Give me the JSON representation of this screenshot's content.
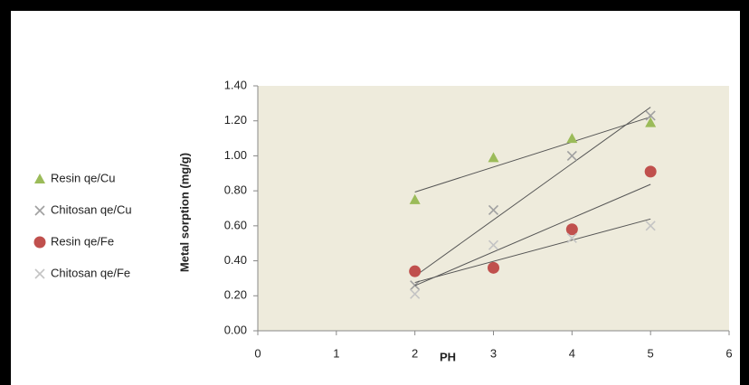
{
  "chart_data": {
    "type": "scatter",
    "trendline": "linear",
    "x_label": "PH",
    "y_label": "Metal sorption (mg/g)",
    "xlim": [
      0,
      6
    ],
    "xticks": [
      0,
      1,
      2,
      3,
      4,
      5,
      6
    ],
    "ylim": [
      0,
      1.4
    ],
    "yticks": [
      {
        "value": 0,
        "label": "0.00"
      },
      {
        "value": 0.2,
        "label": "0.20"
      },
      {
        "value": 0.4,
        "label": "0.40"
      },
      {
        "value": 0.6,
        "label": "0.60"
      },
      {
        "value": 0.8,
        "label": "0.80"
      },
      {
        "value": 1.0,
        "label": "1.00"
      },
      {
        "value": 1.2,
        "label": "1.20"
      },
      {
        "value": 1.4,
        "label": "1.40"
      }
    ],
    "legend": "left",
    "series": [
      {
        "name": "Resin qe/Cu",
        "color": "#9bbb59",
        "marker": "triangle",
        "x": [
          2,
          3,
          4,
          5
        ],
        "values": [
          0.75,
          0.99,
          1.1,
          1.19
        ]
      },
      {
        "name": "Chitosan qe/Cu",
        "color": "#a0a0a0",
        "marker": "cross",
        "x": [
          2,
          3,
          4,
          5
        ],
        "values": [
          0.26,
          0.69,
          1.0,
          1.23
        ]
      },
      {
        "name": "Resin qe/Fe",
        "color": "#c0504d",
        "marker": "circle",
        "x": [
          2,
          3,
          4,
          5
        ],
        "values": [
          0.34,
          0.36,
          0.58,
          0.91
        ]
      },
      {
        "name": "Chitosan qe/Fe",
        "color": "#c4c4c4",
        "marker": "cross",
        "x": [
          2,
          3,
          4,
          5
        ],
        "values": [
          0.21,
          0.49,
          0.53,
          0.6
        ]
      }
    ]
  }
}
